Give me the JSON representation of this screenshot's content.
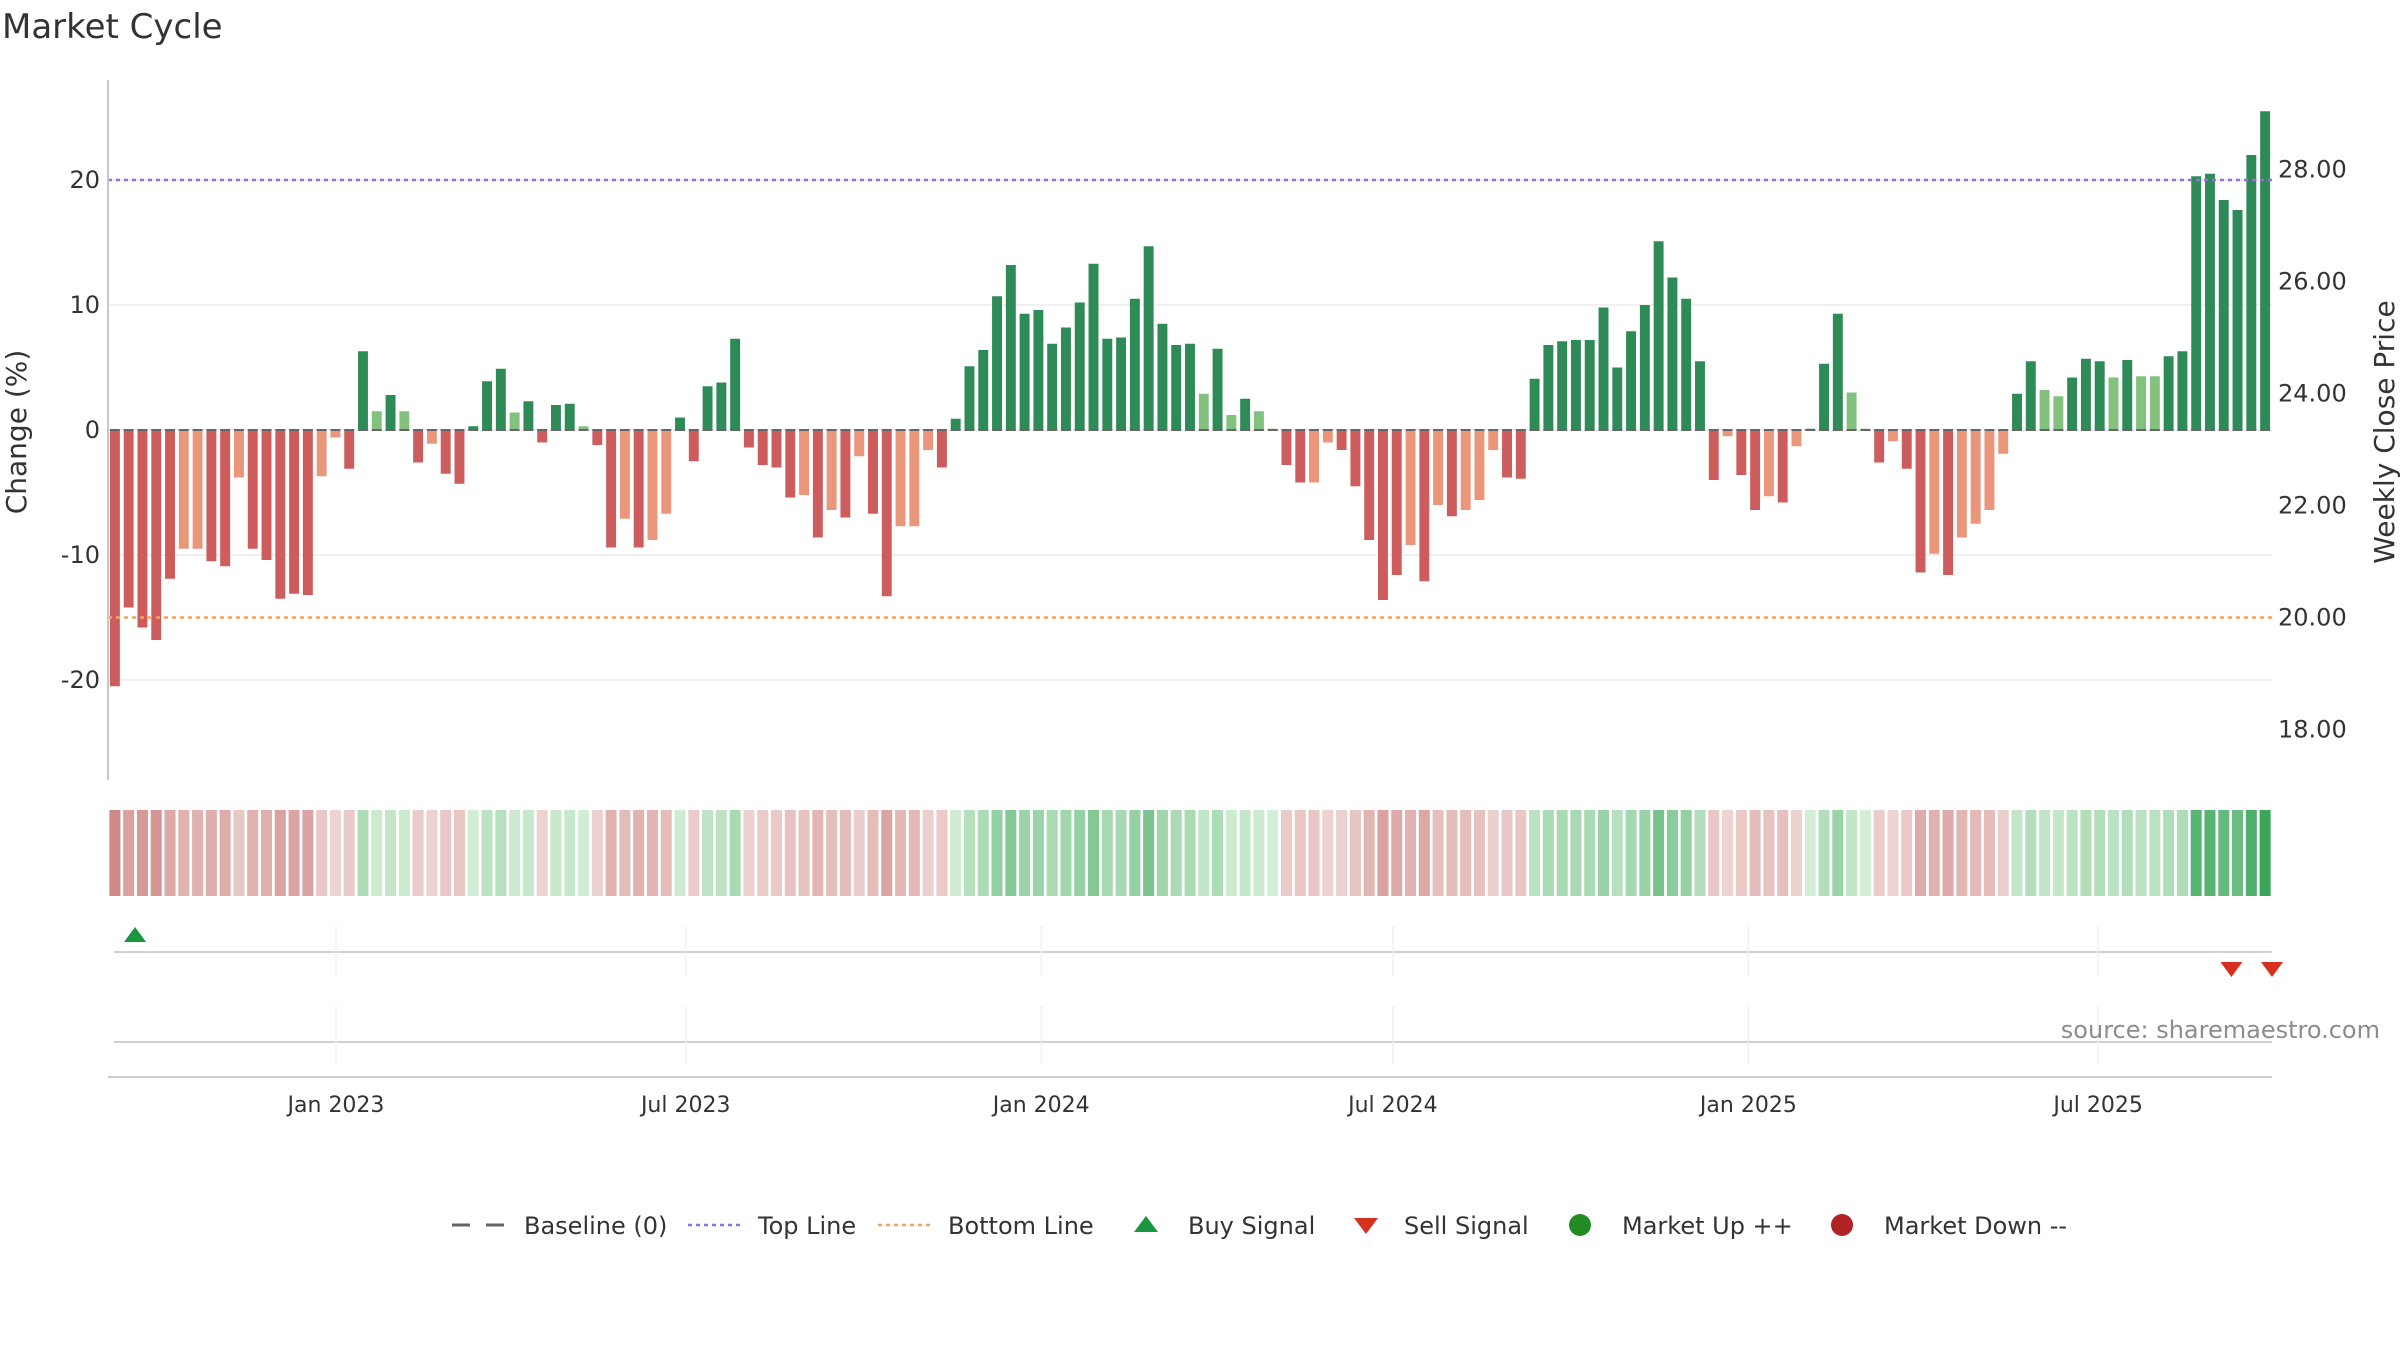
{
  "chart_data": {
    "type": "bar",
    "title": "Market Cycle",
    "ylabel": "Change (%)",
    "y2label": "Weekly Close Price",
    "ylim": [
      -28,
      28
    ],
    "y2lim": [
      17.1,
      29.6
    ],
    "yticks": [
      -20,
      -10,
      0,
      10,
      20
    ],
    "y2ticks": [
      18,
      20,
      22,
      24,
      26,
      28
    ],
    "y2tick_labels": [
      "18.00",
      "20.00",
      "22.00",
      "24.00",
      "26.00",
      "28.00"
    ],
    "top_line": 20,
    "bottom_line": -15,
    "x_start": "2022-09-05",
    "x_end": "2025-09-29",
    "xticks": [
      {
        "date": "2023-01-01",
        "label": "Jan 2023"
      },
      {
        "date": "2023-07-01",
        "label": "Jul 2023"
      },
      {
        "date": "2024-01-01",
        "label": "Jan 2024"
      },
      {
        "date": "2024-07-01",
        "label": "Jul 2024"
      },
      {
        "date": "2025-01-01",
        "label": "Jan 2025"
      },
      {
        "date": "2025-07-01",
        "label": "Jul 2025"
      }
    ],
    "values": [
      -20.5,
      -14.2,
      -15.8,
      -16.8,
      -11.9,
      -9.5,
      -9.5,
      -10.5,
      -10.9,
      -3.8,
      -9.5,
      -10.4,
      -13.5,
      -13.1,
      -13.2,
      -3.7,
      -0.6,
      -3.1,
      6.3,
      1.5,
      2.8,
      1.5,
      -2.6,
      -1.1,
      -3.5,
      -4.3,
      0.3,
      3.9,
      4.9,
      1.4,
      2.3,
      -1.0,
      2.0,
      2.1,
      0.3,
      -1.2,
      -9.4,
      -7.1,
      -9.4,
      -8.8,
      -6.7,
      1.0,
      -2.5,
      3.5,
      3.8,
      7.3,
      -1.4,
      -2.8,
      -3.0,
      -5.4,
      -5.2,
      -8.6,
      -6.4,
      -7.0,
      -2.1,
      -6.7,
      -13.3,
      -7.7,
      -7.7,
      -1.6,
      -3.0,
      0.9,
      5.1,
      6.4,
      10.7,
      13.2,
      9.3,
      9.6,
      6.9,
      8.2,
      10.2,
      13.3,
      7.3,
      7.4,
      10.5,
      14.7,
      8.5,
      6.8,
      6.9,
      2.9,
      6.5,
      1.2,
      2.5,
      1.5,
      0.1,
      -2.8,
      -4.2,
      -4.2,
      -1.0,
      -1.6,
      -4.5,
      -8.8,
      -13.6,
      -11.6,
      -9.2,
      -12.1,
      -6.0,
      -6.9,
      -6.4,
      -5.6,
      -1.6,
      -3.8,
      -3.9,
      4.1,
      6.8,
      7.1,
      7.2,
      7.2,
      9.8,
      5.0,
      7.9,
      10.0,
      15.1,
      12.2,
      10.5,
      5.5,
      -4.0,
      -0.5,
      -3.6,
      -6.4,
      -5.3,
      -5.8,
      -1.3,
      0.1,
      5.3,
      9.3,
      3.0,
      0.1,
      -2.6,
      -0.9,
      -3.1,
      -11.4,
      -9.9,
      -11.6,
      -8.6,
      -7.5,
      -6.4,
      -1.9,
      2.9,
      5.5,
      3.2,
      2.7,
      4.2,
      5.7,
      5.5,
      4.2,
      5.6,
      4.3,
      4.3,
      5.9,
      6.3,
      20.3,
      20.5,
      18.4,
      17.6,
      22.0,
      25.5
    ],
    "markers": [
      {
        "type": "buy",
        "date": "2022-09-19"
      },
      {
        "type": "sell",
        "date": "2025-09-08"
      },
      {
        "type": "sell",
        "date": "2025-09-29"
      }
    ],
    "legend": [
      {
        "key": "baseline",
        "label": "Baseline (0)"
      },
      {
        "key": "top",
        "label": "Top Line"
      },
      {
        "key": "bottom",
        "label": "Bottom Line"
      },
      {
        "key": "buy",
        "label": "Buy Signal"
      },
      {
        "key": "sell",
        "label": "Sell Signal"
      },
      {
        "key": "up",
        "label": "Market Up ++"
      },
      {
        "key": "down",
        "label": "Market Down --"
      }
    ],
    "legend_position": "bottom",
    "source": "source: sharemaestro.com"
  },
  "colors": {
    "up_strong": "#2e8b57",
    "up_light": "#82c27e",
    "down_strong": "#cd5c5c",
    "down_light": "#e9967a",
    "top_line": "#9370db",
    "bottom_line": "#f4a460",
    "buy": "#1a9641",
    "sell": "#d7301f",
    "market_up": "#228b22",
    "market_down": "#b22222",
    "baseline": "#666666"
  }
}
